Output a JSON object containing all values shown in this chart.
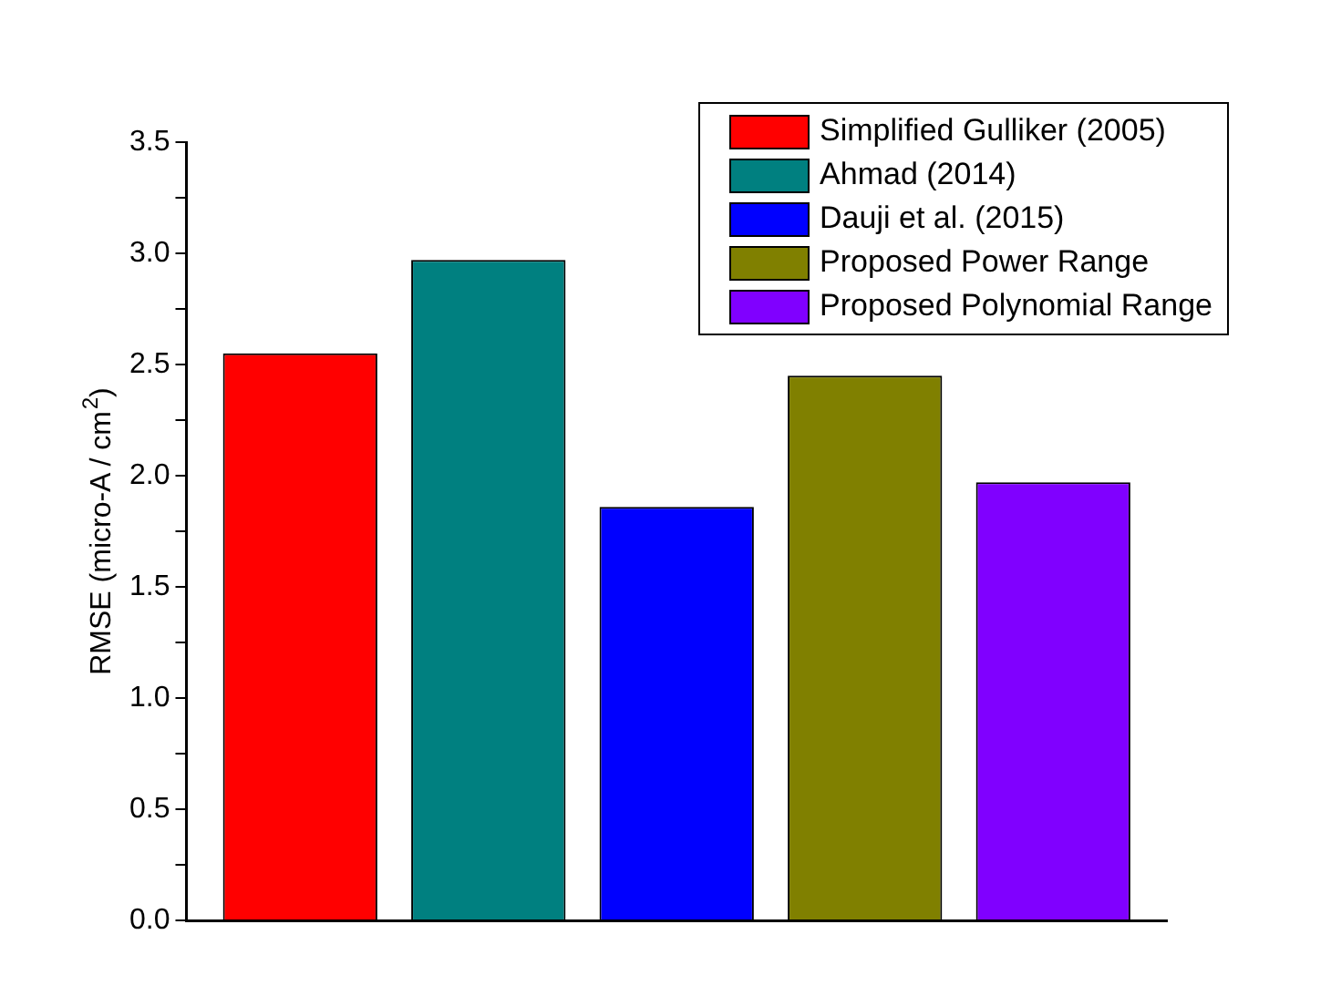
{
  "chart_data": {
    "type": "bar",
    "ylabel": "RMSE (micro-A / cm$^{2}$)",
    "categories": [
      null
    ],
    "series": [
      {
        "name": "Simplified Gulliker (2005)",
        "color": "#ff0000",
        "values": [
          2.55
        ]
      },
      {
        "name": "Ahmad (2014)",
        "color": "#008080",
        "values": [
          2.97
        ]
      },
      {
        "name": "Dauji et al. (2015)",
        "color": "#0000ff",
        "values": [
          1.86
        ]
      },
      {
        "name": "Proposed Power Range",
        "color": "#808000",
        "values": [
          2.45
        ]
      },
      {
        "name": "Proposed Polynomial Range",
        "color": "#8000ff",
        "values": [
          1.97
        ]
      }
    ],
    "ylim": [
      0,
      3.5
    ],
    "yticks": [
      {
        "value": 0,
        "label": "0.0"
      },
      {
        "value": 0.25,
        "label": null
      },
      0.5,
      {
        "value": 0.75,
        "label": null
      },
      {
        "value": 1,
        "label": "1.0"
      },
      {
        "value": 1.25,
        "label": null
      },
      1.5,
      {
        "value": 1.75,
        "label": null
      },
      {
        "value": 2,
        "label": "2.0"
      },
      {
        "value": 2.25,
        "label": null
      },
      2.5,
      {
        "value": 2.75,
        "label": null
      },
      {
        "value": 3,
        "label": "3.0"
      },
      {
        "value": 3.25,
        "label": null
      },
      3.5
    ],
    "grid": false,
    "legend": "top right",
    "tick_labels": "y"
  }
}
